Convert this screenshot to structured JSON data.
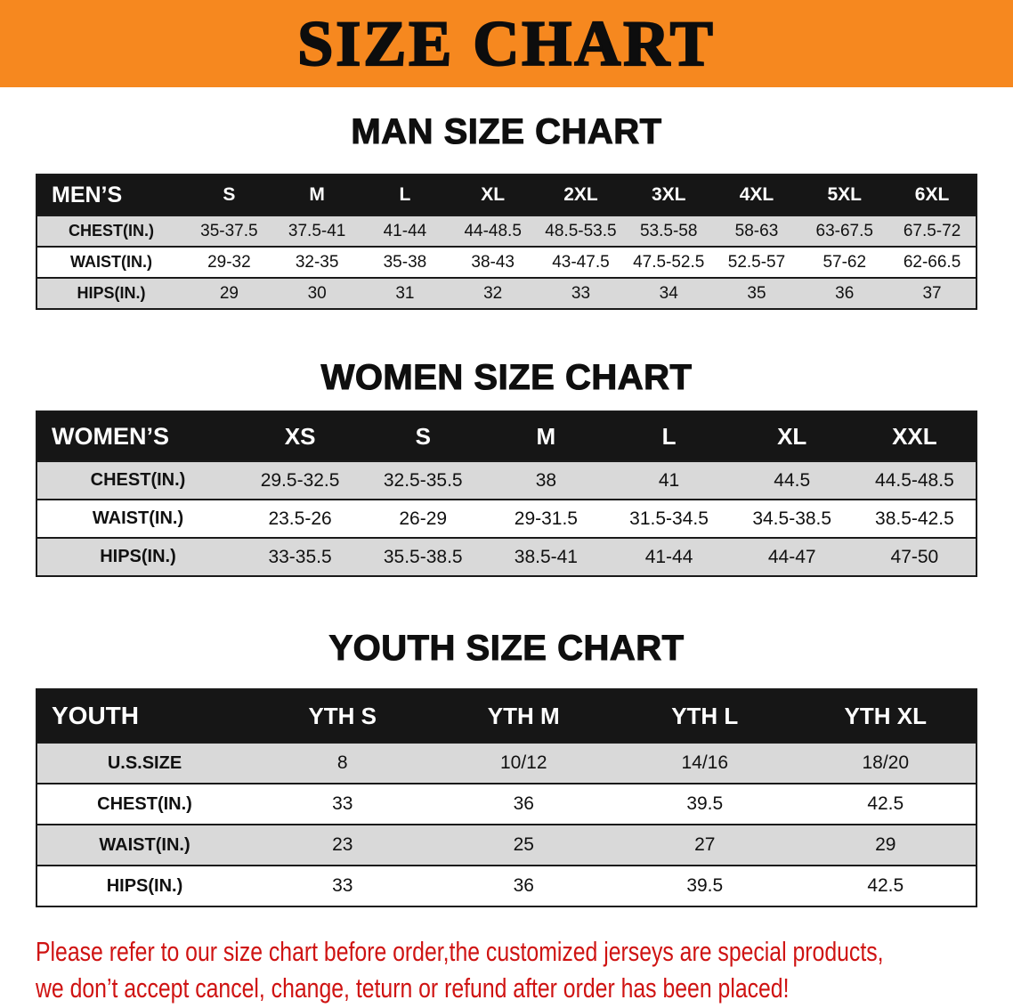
{
  "title": "SIZE CHART",
  "colors": {
    "banner_orange": "#F6881F",
    "table_header_black": "#161616",
    "row_stripe_gray": "#D9D9D9",
    "footer_red": "#CF1312"
  },
  "sections": [
    {
      "heading": "MAN SIZE CHART",
      "table": {
        "label": "MEN’S",
        "columns": [
          "S",
          "M",
          "L",
          "XL",
          "2XL",
          "3XL",
          "4XL",
          "5XL",
          "6XL"
        ],
        "rows": [
          {
            "label": "CHEST(IN.)",
            "values": [
              "35-37.5",
              "37.5-41",
              "41-44",
              "44-48.5",
              "48.5-53.5",
              "53.5-58",
              "58-63",
              "63-67.5",
              "67.5-72"
            ]
          },
          {
            "label": "WAIST(IN.)",
            "values": [
              "29-32",
              "32-35",
              "35-38",
              "38-43",
              "43-47.5",
              "47.5-52.5",
              "52.5-57",
              "57-62",
              "62-66.5"
            ]
          },
          {
            "label": "HIPS(IN.)",
            "values": [
              "29",
              "30",
              "31",
              "32",
              "33",
              "34",
              "35",
              "36",
              "37"
            ]
          }
        ]
      }
    },
    {
      "heading": "WOMEN SIZE CHART",
      "table": {
        "label": "WOMEN’S",
        "columns": [
          "XS",
          "S",
          "M",
          "L",
          "XL",
          "XXL"
        ],
        "rows": [
          {
            "label": "CHEST(IN.)",
            "values": [
              "29.5-32.5",
              "32.5-35.5",
              "38",
              "41",
              "44.5",
              "44.5-48.5"
            ]
          },
          {
            "label": "WAIST(IN.)",
            "values": [
              "23.5-26",
              "26-29",
              "29-31.5",
              "31.5-34.5",
              "34.5-38.5",
              "38.5-42.5"
            ]
          },
          {
            "label": "HIPS(IN.)",
            "values": [
              "33-35.5",
              "35.5-38.5",
              "38.5-41",
              "41-44",
              "44-47",
              "47-50"
            ]
          }
        ]
      }
    },
    {
      "heading": "YOUTH SIZE CHART",
      "table": {
        "label": "YOUTH",
        "columns": [
          "YTH S",
          "YTH M",
          "YTH L",
          "YTH XL"
        ],
        "rows": [
          {
            "label": "U.S.SIZE",
            "values": [
              "8",
              "10/12",
              "14/16",
              "18/20"
            ]
          },
          {
            "label": "CHEST(IN.)",
            "values": [
              "33",
              "36",
              "39.5",
              "42.5"
            ]
          },
          {
            "label": "WAIST(IN.)",
            "values": [
              "23",
              "25",
              "27",
              "29"
            ]
          },
          {
            "label": "HIPS(IN.)",
            "values": [
              "33",
              "36",
              "39.5",
              "42.5"
            ]
          }
        ]
      }
    }
  ],
  "footer": {
    "lines": [
      "Please refer to our size chart before order,the customized jerseys are special products,",
      "we don’t accept cancel, change, teturn or refund after order has been placed!"
    ]
  }
}
